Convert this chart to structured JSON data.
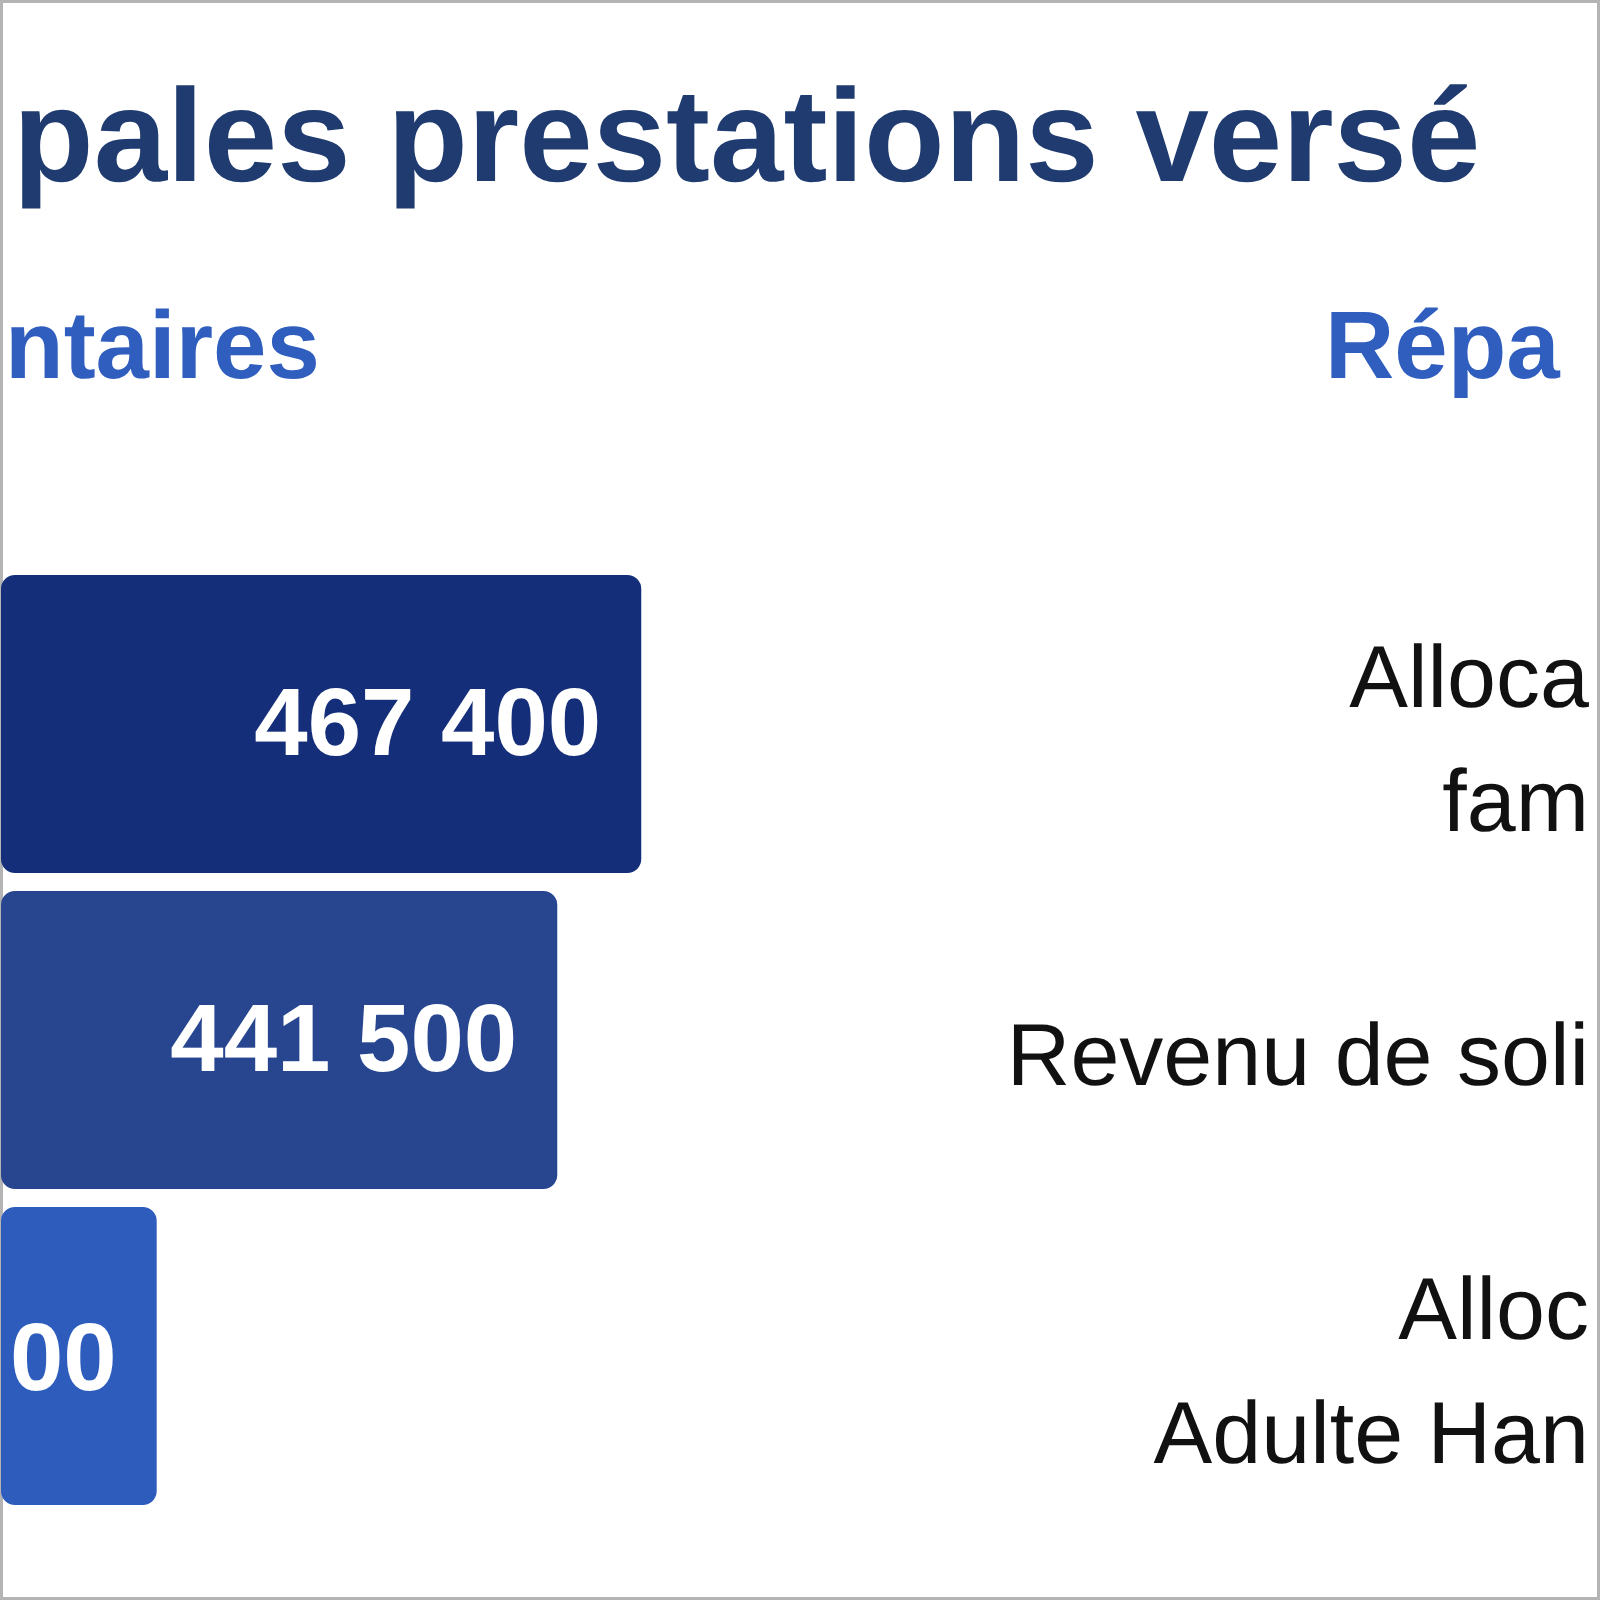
{
  "chart_data": {
    "type": "bar",
    "orientation": "horizontal",
    "title": "pales prestations versé",
    "subtitle": "ntaires",
    "annotations": [
      "Répa",
      {
        "text": "00",
        "x": 318000,
        "y": "Alloc\nAdulte Han"
      }
    ],
    "categories": [
      "Alloca\nfam",
      "Revenu de soli",
      "Alloc\nAdulte Han"
    ],
    "values": [
      467400,
      441500,
      318000
    ],
    "colors": [
      "#142e79",
      "#27468f",
      "#2d5cbd"
    ],
    "value_labels": [
      "467 400",
      "441 500",
      null
    ],
    "xlim": [
      270000,
      763300
    ],
    "tick_labels": false
  }
}
